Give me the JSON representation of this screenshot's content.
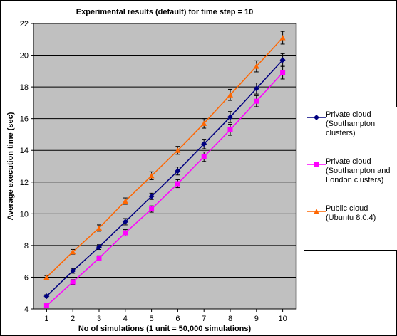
{
  "chart_data": {
    "type": "line",
    "title": "Experimental results (default) for time step = 10",
    "xlabel": "No of simulations (1 unit = 50,000 simulations)",
    "ylabel": "Average execution time (sec)",
    "categories": [
      1,
      2,
      3,
      4,
      5,
      6,
      7,
      8,
      9,
      10
    ],
    "ylim": [
      4,
      22
    ],
    "yticks": [
      4,
      6,
      8,
      10,
      12,
      14,
      16,
      18,
      20,
      22
    ],
    "grid": true,
    "plot_background": "#c0c0c0",
    "legend_position": "right",
    "series": [
      {
        "name": "Private cloud (Southampton clusters)",
        "color": "#000080",
        "marker": "diamond",
        "values": [
          4.8,
          6.4,
          7.9,
          9.5,
          11.1,
          12.7,
          14.4,
          16.1,
          17.9,
          19.7
        ],
        "error": [
          0.1,
          0.15,
          0.15,
          0.2,
          0.2,
          0.25,
          0.3,
          0.35,
          0.35,
          0.4
        ]
      },
      {
        "name": "Private cloud (Southampton and London clusters)",
        "color": "#ff00ff",
        "marker": "square",
        "values": [
          4.2,
          5.7,
          7.2,
          8.8,
          10.3,
          11.9,
          13.6,
          15.3,
          17.1,
          18.9
        ],
        "error": [
          0.1,
          0.15,
          0.15,
          0.2,
          0.2,
          0.25,
          0.3,
          0.35,
          0.35,
          0.4
        ]
      },
      {
        "name": "Public cloud (Ubuntu 8.0.4)",
        "color": "#ff6600",
        "marker": "triangle",
        "values": [
          6.0,
          7.6,
          9.1,
          10.8,
          12.4,
          14.0,
          15.7,
          17.5,
          19.3,
          21.1
        ],
        "error": [
          0.1,
          0.15,
          0.2,
          0.2,
          0.25,
          0.25,
          0.3,
          0.35,
          0.35,
          0.4
        ]
      }
    ]
  }
}
